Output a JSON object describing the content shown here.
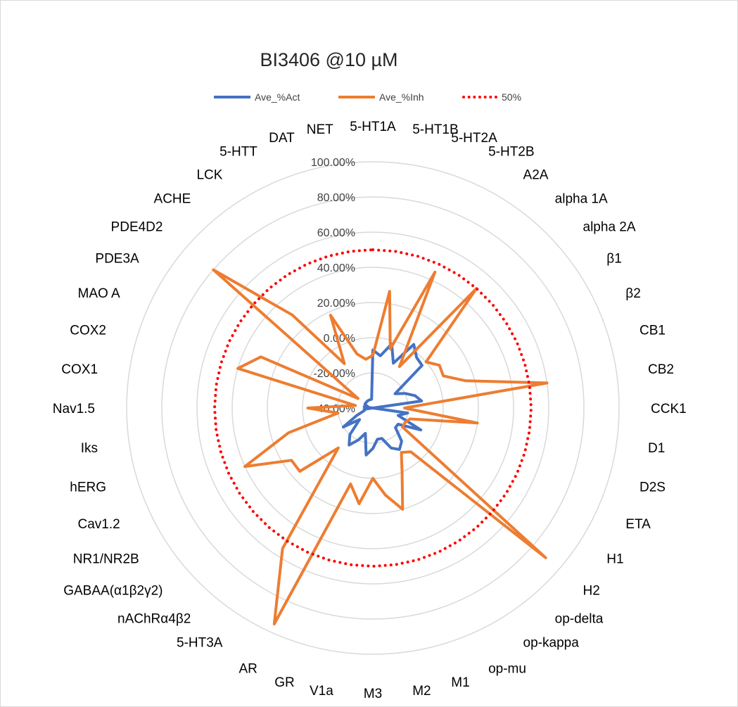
{
  "chart_data": {
    "type": "radar",
    "title": "BI3406 @10 µM",
    "categories": [
      "5-HT1A",
      "5-HT1B",
      "5-HT2A",
      "5-HT2B",
      "A2A",
      "alpha 1A",
      "alpha 2A",
      "β1",
      "β2",
      "CB1",
      "CB2",
      "CCK1",
      "D1",
      "D2S",
      "ETA",
      "H1",
      "H2",
      "op-delta",
      "op-kappa",
      "op-mu",
      "M1",
      "M2",
      "M3",
      "V1a",
      "GR",
      "AR",
      "5-HT3A",
      "nAChRα4β2",
      "GABAA(α1β2γ2)",
      "NR1/NR2B",
      "Cav1.2",
      "hERG",
      "Iks",
      "Nav1.5",
      "COX1",
      "COX2",
      "MAO A",
      "PDE3A",
      "PDE4D2",
      "ACHE",
      "LCK",
      "5-HTT",
      "DAT",
      "NET"
    ],
    "ticks": [
      "-40.00%",
      "-20.00%",
      "0.00%",
      "20.00%",
      "40.00%",
      "60.00%",
      "80.00%",
      "100.00%"
    ],
    "rmin": -40,
    "rmax": 100,
    "tick_step": 20,
    "legend_position": "top",
    "series": [
      {
        "name": "Ave_%Act",
        "color": "#4472c4",
        "values": [
          -7,
          -10,
          -2,
          -12,
          3,
          -2,
          -3,
          -25,
          -20,
          -15,
          -12,
          -40,
          -20,
          -25,
          -10,
          -23,
          -23,
          -15,
          -12,
          -15,
          -22,
          -22,
          -17,
          -13,
          -25,
          -20,
          -15,
          -20,
          -30,
          -20,
          -30,
          -35,
          -35,
          -40,
          -35,
          -37,
          -35,
          -35,
          -35,
          -35,
          -35,
          -35,
          -35,
          -35
        ]
      },
      {
        "name": "Ave_%Inh",
        "color": "#ed7d31",
        "values": [
          -10,
          27,
          -5,
          45,
          -12,
          50,
          0,
          5,
          4,
          15,
          60,
          -22,
          20,
          -18,
          -20,
          -20,
          90,
          -7,
          -10,
          0,
          20,
          10,
          0,
          15,
          5,
          95,
          55,
          -10,
          15,
          15,
          40,
          10,
          -20,
          -3,
          -30,
          40,
          30,
          -30,
          80,
          30,
          -10,
          18,
          -8,
          -12
        ]
      },
      {
        "name": "50%",
        "color": "#ff0000",
        "values": [
          50,
          50,
          50,
          50,
          50,
          50,
          50,
          50,
          50,
          50,
          50,
          50,
          50,
          50,
          50,
          50,
          50,
          50,
          50,
          50,
          50,
          50,
          50,
          50,
          50,
          50,
          50,
          50,
          50,
          50,
          50,
          50,
          50,
          50,
          50,
          50,
          50,
          50,
          50,
          50,
          50,
          50,
          50,
          50
        ]
      }
    ]
  }
}
